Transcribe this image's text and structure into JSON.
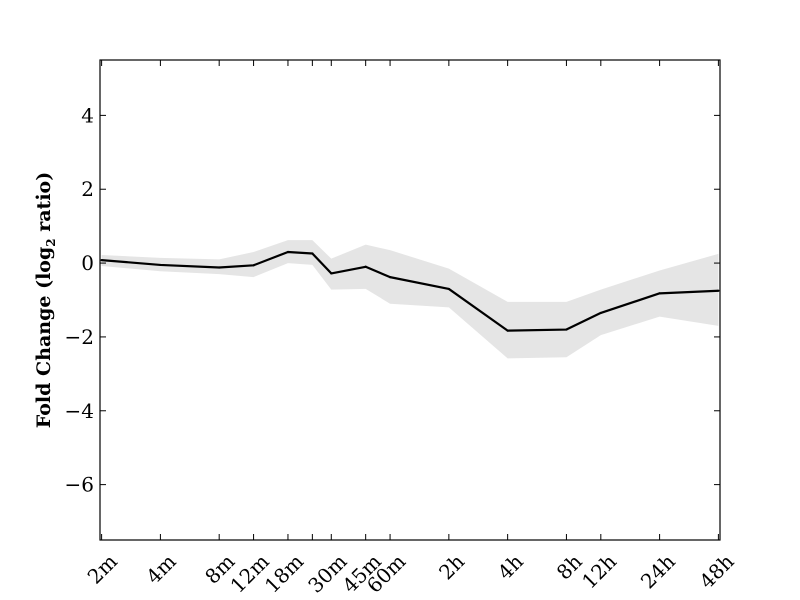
{
  "chart_data": {
    "type": "line",
    "title": "",
    "xlabel": "",
    "ylabel": "Fold Change (log",
    "ylabel_sub": "2",
    "ylabel_suffix": " ratio)",
    "ylim": [
      -7.5,
      5.5
    ],
    "yticks": [
      -6,
      -4,
      -2,
      0,
      2,
      4
    ],
    "ytick_labels": [
      "−6",
      "−4",
      "−2",
      "0",
      "2",
      "4"
    ],
    "grid": false,
    "x": [
      2,
      4,
      8,
      12,
      18,
      24,
      30,
      45,
      60,
      120,
      240,
      480,
      720,
      1440,
      2880
    ],
    "x_scale": "log",
    "tick_labels": [
      "2m",
      "4m",
      "8m",
      "12m",
      "18m",
      "",
      "30m",
      "45m",
      "60m",
      "2h",
      "4h",
      "8h",
      "12h",
      "24h",
      "48h"
    ],
    "series": [
      {
        "values": [
          0.08,
          -0.05,
          -0.12,
          -0.06,
          0.3,
          0.26,
          -0.28,
          -0.1,
          -0.38,
          -0.7,
          -1.83,
          -1.8,
          -1.35,
          -0.82,
          -0.75
        ],
        "upper": [
          0.22,
          0.14,
          0.1,
          0.3,
          0.62,
          0.62,
          0.12,
          0.5,
          0.35,
          -0.15,
          -1.05,
          -1.05,
          -0.72,
          -0.2,
          0.25
        ],
        "lower": [
          -0.08,
          -0.22,
          -0.3,
          -0.38,
          0.0,
          -0.05,
          -0.72,
          -0.7,
          -1.1,
          -1.2,
          -2.58,
          -2.55,
          -1.95,
          -1.45,
          -1.7
        ],
        "color": "#000000",
        "band_color": "#e5e5e5"
      }
    ]
  }
}
